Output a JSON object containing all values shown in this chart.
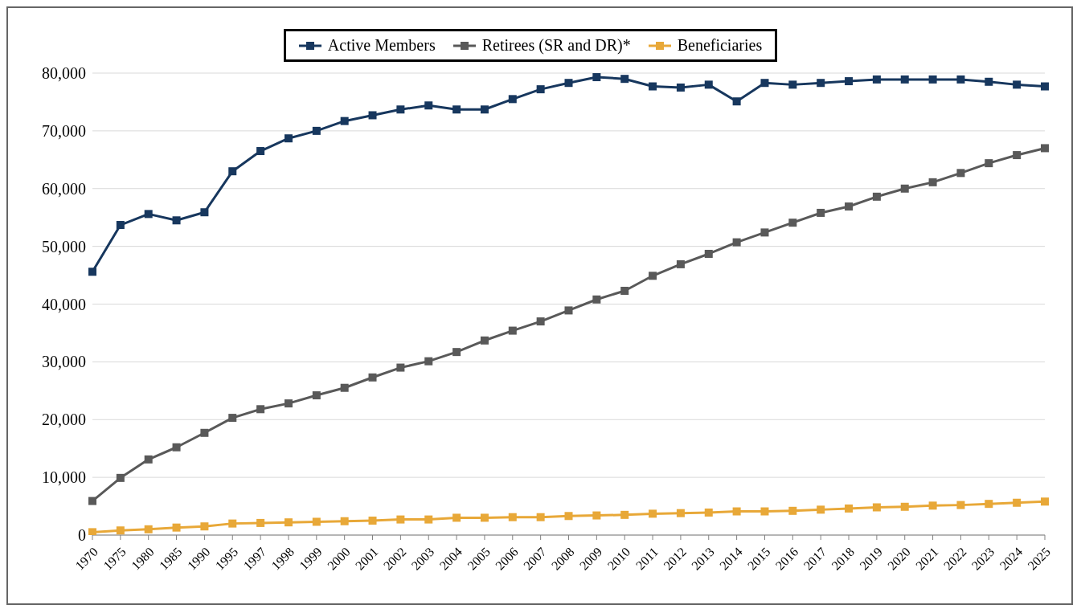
{
  "chart_data": {
    "type": "line",
    "categories": [
      "1970",
      "1975",
      "1980",
      "1985",
      "1990",
      "1995",
      "1997",
      "1998",
      "1999",
      "2000",
      "2001",
      "2002",
      "2003",
      "2004",
      "2005",
      "2006",
      "2007",
      "2008",
      "2009",
      "2010",
      "2011",
      "2012",
      "2013",
      "2014",
      "2015",
      "2016",
      "2017",
      "2018",
      "2019",
      "2020",
      "2021",
      "2022",
      "2023",
      "2024",
      "2025"
    ],
    "series": [
      {
        "name": "Active Members",
        "color": "#17375e",
        "values": [
          45600,
          53700,
          55600,
          54500,
          55900,
          63000,
          66500,
          68700,
          70000,
          71700,
          72700,
          73700,
          74400,
          73700,
          73700,
          75500,
          77200,
          78300,
          79300,
          79000,
          77700,
          77500,
          78000,
          75100,
          78300,
          78000,
          78300,
          78600,
          78900,
          78900,
          78900,
          78900,
          78500,
          78000,
          77700
        ]
      },
      {
        "name": "Retirees (SR and DR)*",
        "color": "#595959",
        "values": [
          5900,
          9900,
          13100,
          15200,
          17700,
          20300,
          21800,
          22800,
          24200,
          25500,
          27300,
          29000,
          30100,
          31700,
          33700,
          35400,
          37000,
          38900,
          40800,
          42300,
          44900,
          46900,
          48700,
          50700,
          52400,
          54100,
          55800,
          56900,
          58600,
          60000,
          61100,
          62700,
          64400,
          65800,
          67000
        ]
      },
      {
        "name": "Beneficiaries",
        "color": "#e8a838",
        "values": [
          500,
          800,
          1000,
          1300,
          1500,
          2000,
          2100,
          2200,
          2300,
          2400,
          2500,
          2700,
          2700,
          3000,
          3000,
          3100,
          3100,
          3300,
          3400,
          3500,
          3700,
          3800,
          3900,
          4100,
          4100,
          4200,
          4400,
          4600,
          4800,
          4900,
          5100,
          5200,
          5400,
          5600,
          5800
        ]
      }
    ],
    "ylim": [
      0,
      80000
    ],
    "yticks": [
      0,
      {
        "value": 10000,
        "label": "10,000"
      },
      {
        "value": 20000,
        "label": "20,000"
      },
      {
        "value": 30000,
        "label": "30,000"
      },
      {
        "value": 40000,
        "label": "40,000"
      },
      {
        "value": 50000,
        "label": "50,000"
      },
      {
        "value": 60000,
        "label": "60,000"
      },
      {
        "value": 70000,
        "label": "70,000"
      },
      {
        "value": 80000,
        "label": "80,000"
      }
    ],
    "grid": "y",
    "legend": "top",
    "marker": "square",
    "line_style": "solid"
  }
}
